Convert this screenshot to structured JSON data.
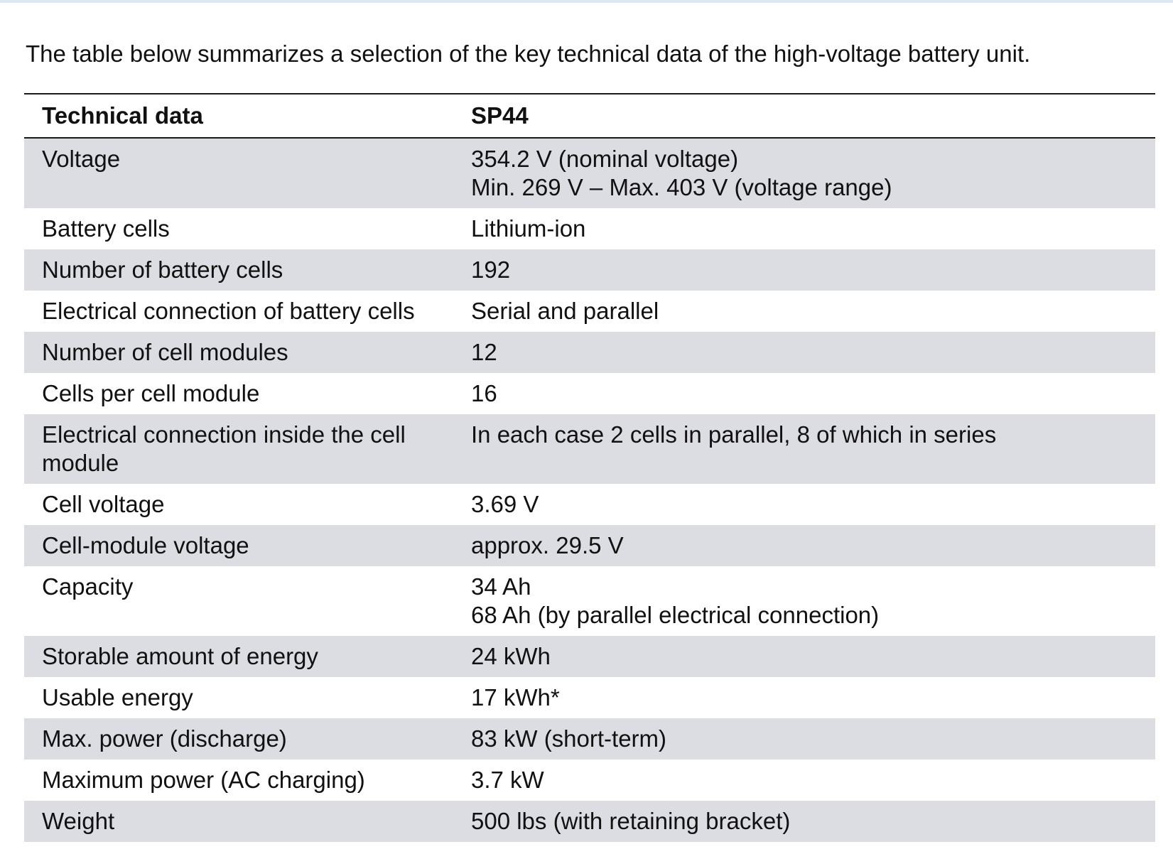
{
  "intro": "The table below summarizes a selection of the key technical data of the high-voltage battery unit.",
  "table": {
    "headers": [
      "Technical data",
      "SP44"
    ],
    "rows": [
      {
        "label": "Voltage",
        "value": [
          "354.2 V (nominal voltage)",
          "Min. 269 V – Max. 403 V (voltage range)"
        ]
      },
      {
        "label": "Battery cells",
        "value": [
          "Lithium-ion"
        ]
      },
      {
        "label": "Number of battery cells",
        "value": [
          "192"
        ]
      },
      {
        "label": "Electrical connection of battery cells",
        "value": [
          "Serial and parallel"
        ]
      },
      {
        "label": "Number of cell modules",
        "value": [
          "12"
        ]
      },
      {
        "label": "Cells per cell module",
        "value": [
          "16"
        ]
      },
      {
        "label": "Electrical connection inside the cell module",
        "value": [
          "In each case 2 cells in parallel, 8 of which in series"
        ]
      },
      {
        "label": "Cell voltage",
        "value": [
          "3.69 V"
        ]
      },
      {
        "label": "Cell-module voltage",
        "value": [
          "approx. 29.5 V"
        ]
      },
      {
        "label": "Capacity",
        "value": [
          "34 Ah",
          "68 Ah (by parallel electrical connection)"
        ]
      },
      {
        "label": "Storable amount of energy",
        "value": [
          "24 kWh"
        ]
      },
      {
        "label": "Usable energy",
        "value": [
          "17 kWh*"
        ]
      },
      {
        "label": "Max. power (discharge)",
        "value": [
          "83 kW (short-term)"
        ]
      },
      {
        "label": "Maximum power (AC charging)",
        "value": [
          "3.7 kW"
        ]
      },
      {
        "label": "Weight",
        "value": [
          "500 lbs (with retaining bracket)"
        ]
      }
    ]
  },
  "colors": {
    "shaded_row": "#dcdde2",
    "plain_row": "#ffffff",
    "rule": "#1a1a1a",
    "top_band": "#dde8f3"
  }
}
